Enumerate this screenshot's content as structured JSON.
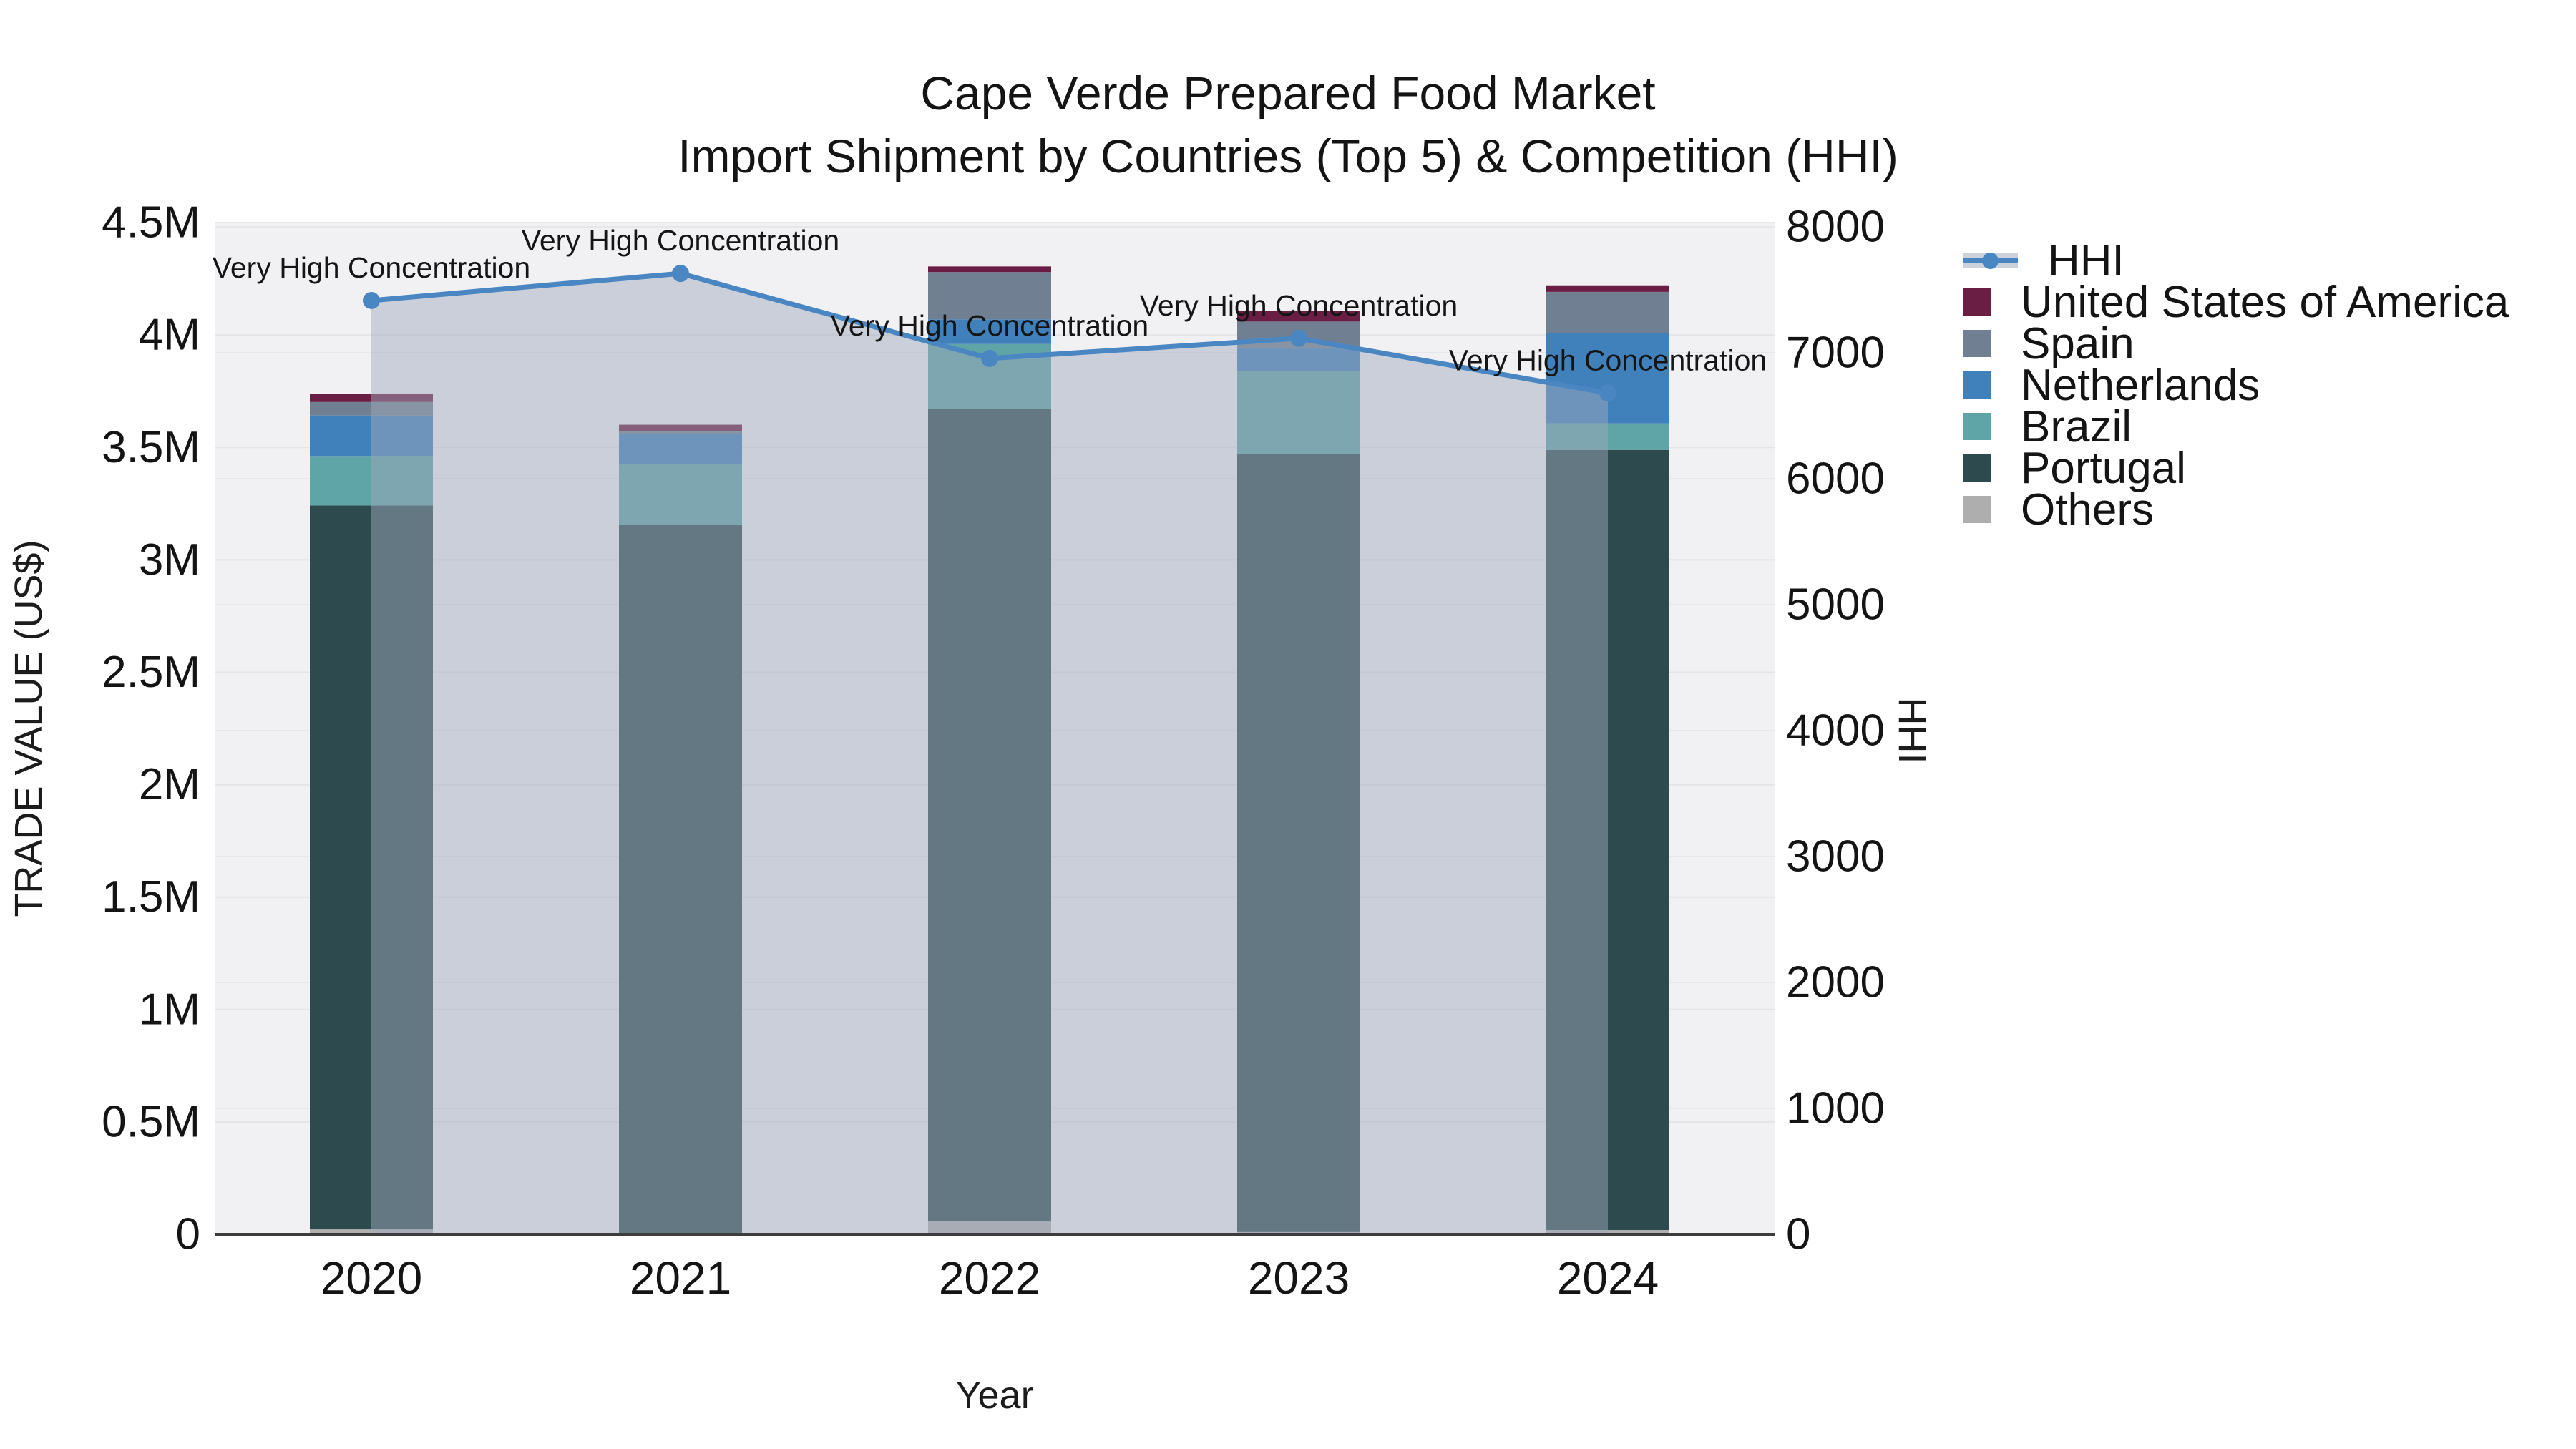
{
  "chart_data": {
    "type": "bar",
    "subtype": "stacked-bars-with-line",
    "title_line1": "Cape Verde Prepared Food Market",
    "title_line2": "Import Shipment by Countries (Top 5) & Competition (HHI)",
    "xlabel": "Year",
    "ylabel_left": "TRADE VALUE (US$)",
    "ylabel_right": "HHI",
    "categories": [
      "2020",
      "2021",
      "2022",
      "2023",
      "2024"
    ],
    "stack_order": [
      "Others",
      "Portugal",
      "Brazil",
      "Netherlands",
      "Spain",
      "United States of America"
    ],
    "series": [
      {
        "name": "United States of America",
        "color": "#6b1e43",
        "values": [
          35000,
          29000,
          25000,
          48000,
          29000
        ]
      },
      {
        "name": "Spain",
        "color": "#708092",
        "values": [
          60000,
          13000,
          210000,
          120000,
          185000
        ]
      },
      {
        "name": "Netherlands",
        "color": "#4181bb",
        "values": [
          180000,
          134000,
          110000,
          100000,
          400000
        ]
      },
      {
        "name": "Brazil",
        "color": "#5fa4a6",
        "values": [
          220000,
          270000,
          290000,
          370000,
          118000
        ]
      },
      {
        "name": "Portugal",
        "color": "#2d4b4e",
        "values": [
          3220000,
          3150000,
          3610000,
          3460000,
          3470000
        ]
      },
      {
        "name": "Others",
        "color": "#aeaeae",
        "values": [
          22000,
          5000,
          60000,
          10000,
          19000
        ]
      }
    ],
    "line_series": {
      "name": "HHI",
      "color": "#4a86c2",
      "fill_color": "rgba(158,170,188,0.48)",
      "values": [
        7415,
        7630,
        6955,
        7115,
        6680
      ]
    },
    "annotations": [
      "Very High Concentration",
      "Very High Concentration",
      "Very High Concentration",
      "Very High Concentration",
      "Very High Concentration"
    ],
    "y_left": {
      "min": 0,
      "max": 4500000,
      "tick_step": 500000,
      "tick_labels": [
        "0",
        "0.5M",
        "1M",
        "1.5M",
        "2M",
        "2.5M",
        "3M",
        "3.5M",
        "4M",
        "4.5M"
      ]
    },
    "y_right": {
      "min": 0,
      "max": 8000,
      "tick_step": 1000,
      "tick_labels": [
        "0",
        "1000",
        "2000",
        "3000",
        "4000",
        "5000",
        "6000",
        "7000",
        "8000"
      ]
    },
    "legend": [
      "HHI",
      "United States of America",
      "Spain",
      "Netherlands",
      "Brazil",
      "Portugal",
      "Others"
    ],
    "grid": true,
    "legend_position": "right"
  }
}
